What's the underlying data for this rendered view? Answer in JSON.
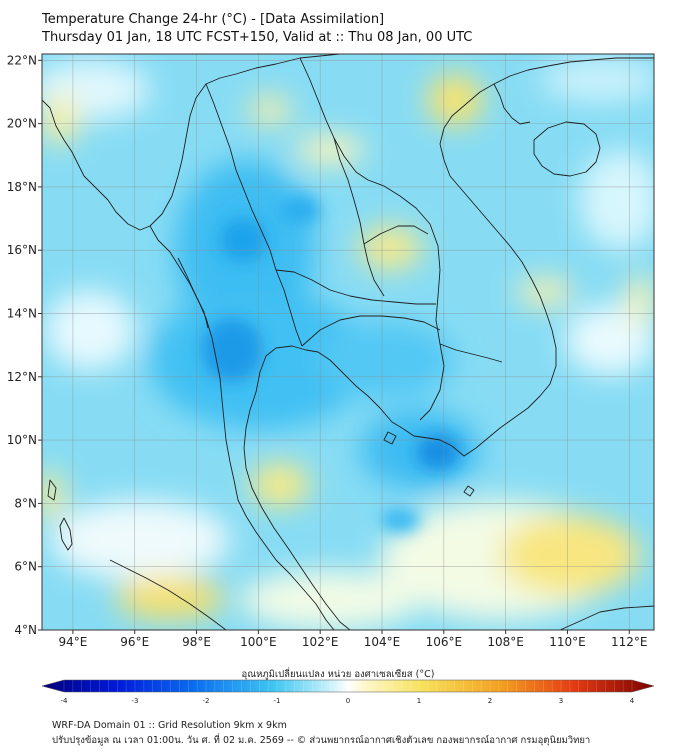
{
  "title": {
    "line1": "Temperature Change 24-hr (°C) - [Data Assimilation]",
    "line2": "Thursday 01 Jan, 18 UTC FCST+150, Valid at :: Thu 08 Jan, 00 UTC"
  },
  "map": {
    "lat_labels": [
      "4°N",
      "6°N",
      "8°N",
      "10°N",
      "12°N",
      "14°N",
      "16°N",
      "18°N",
      "20°N",
      "22°N"
    ],
    "lat_values": [
      4,
      6,
      8,
      10,
      12,
      14,
      16,
      18,
      20,
      22
    ],
    "lon_labels": [
      "94°E",
      "96°E",
      "98°E",
      "100°E",
      "102°E",
      "104°E",
      "106°E",
      "108°E",
      "110°E",
      "112°E"
    ],
    "lon_values": [
      94,
      96,
      98,
      100,
      102,
      104,
      106,
      108,
      110,
      112
    ],
    "lon_range": [
      93.0,
      112.8
    ],
    "lat_range": [
      4.0,
      22.2
    ]
  },
  "colorbar": {
    "label": "อุณหภูมิเปลี่ยนแปลง หน่วย องศาเซลเซียส (°C)",
    "tick_labels": [
      "-4",
      "-3",
      "-2",
      "-1",
      "0",
      "1",
      "2",
      "3",
      "4"
    ],
    "tick_values": [
      -4,
      -3,
      -2,
      -1,
      0,
      1,
      2,
      3,
      4
    ]
  },
  "footer": {
    "line1": "WRF-DA Domain 01 :: Grid Resolution 9km x 9km",
    "line2": "ปรับปรุงข้อมูล ณ เวลา 01:00น. วัน ศ. ที่ 02 ม.ค. 2569 -- © ส่วนพยากรณ์อากาศเชิงตัวเลข กองพยากรณ์อากาศ กรมอุตุนิยมวิทยา"
  },
  "colors": {
    "ocean_base": "#7ed9f3",
    "cold_strong": "#0d8fe6",
    "cold_mid": "#2db6f2",
    "neutral": "#e9fbff",
    "warm_light": "#fbf3a8",
    "warm_mid": "#f6e26a",
    "coast": "#222222",
    "grid": "#9a9a9a"
  }
}
